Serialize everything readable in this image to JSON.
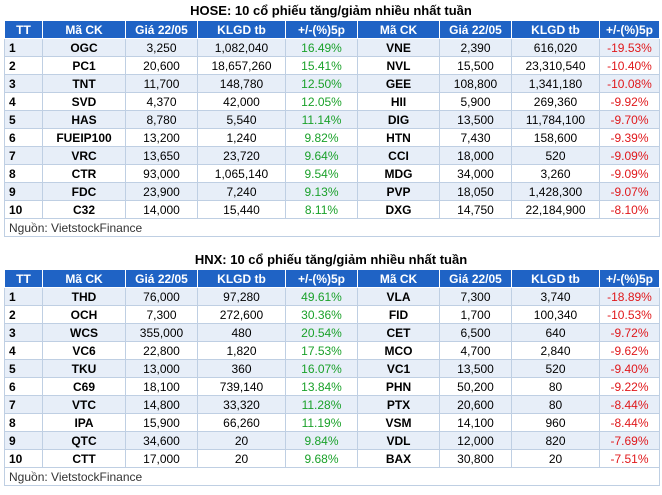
{
  "hose": {
    "title": "HOSE: 10 cổ phiếu tăng/giảm nhiều nhất tuần",
    "headers": [
      "TT",
      "Mã CK",
      "Giá 22/05",
      "KLGD tb",
      "+/-(%)5p",
      "Mã CK",
      "Giá 22/05",
      "KLGD tb",
      "+/-(%)5p"
    ],
    "rows": [
      [
        "1",
        "OGC",
        "3,250",
        "1,082,040",
        "16.49%",
        "VNE",
        "2,390",
        "616,020",
        "-19.53%"
      ],
      [
        "2",
        "PC1",
        "20,600",
        "18,657,260",
        "15.41%",
        "NVL",
        "15,500",
        "23,310,540",
        "-10.40%"
      ],
      [
        "3",
        "TNT",
        "11,700",
        "148,780",
        "12.50%",
        "GEE",
        "108,800",
        "1,341,180",
        "-10.08%"
      ],
      [
        "4",
        "SVD",
        "4,370",
        "42,000",
        "12.05%",
        "HII",
        "5,900",
        "269,360",
        "-9.92%"
      ],
      [
        "5",
        "HAS",
        "8,780",
        "5,540",
        "11.14%",
        "DIG",
        "13,500",
        "11,784,100",
        "-9.70%"
      ],
      [
        "6",
        "FUEIP100",
        "13,200",
        "1,240",
        "9.82%",
        "HTN",
        "7,430",
        "158,600",
        "-9.39%"
      ],
      [
        "7",
        "VRC",
        "13,650",
        "23,720",
        "9.64%",
        "CCI",
        "18,000",
        "520",
        "-9.09%"
      ],
      [
        "8",
        "CTR",
        "93,000",
        "1,065,140",
        "9.54%",
        "MDG",
        "34,000",
        "3,260",
        "-9.09%"
      ],
      [
        "9",
        "FDC",
        "23,900",
        "7,240",
        "9.13%",
        "PVP",
        "18,050",
        "1,428,300",
        "-9.07%"
      ],
      [
        "10",
        "C32",
        "14,000",
        "15,440",
        "8.11%",
        "DXG",
        "14,750",
        "22,184,900",
        "-8.10%"
      ]
    ],
    "source": "Nguồn: VietstockFinance"
  },
  "hnx": {
    "title": "HNX: 10 cổ phiếu tăng/giảm nhiều nhất tuần",
    "headers": [
      "TT",
      "Mã CK",
      "Giá 22/05",
      "KLGD tb",
      "+/-(%)5p",
      "Mã CK",
      "Giá 22/05",
      "KLGD tb",
      "+/-(%)5p"
    ],
    "rows": [
      [
        "1",
        "THD",
        "76,000",
        "97,280",
        "49.61%",
        "VLA",
        "7,300",
        "3,740",
        "-18.89%"
      ],
      [
        "2",
        "OCH",
        "7,300",
        "272,600",
        "30.36%",
        "FID",
        "1,700",
        "100,340",
        "-10.53%"
      ],
      [
        "3",
        "WCS",
        "355,000",
        "480",
        "20.54%",
        "CET",
        "6,500",
        "640",
        "-9.72%"
      ],
      [
        "4",
        "VC6",
        "22,800",
        "1,820",
        "17.53%",
        "MCO",
        "4,700",
        "2,840",
        "-9.62%"
      ],
      [
        "5",
        "TKU",
        "13,000",
        "360",
        "16.07%",
        "VC1",
        "13,500",
        "520",
        "-9.40%"
      ],
      [
        "6",
        "C69",
        "18,100",
        "739,140",
        "13.84%",
        "PHN",
        "50,200",
        "80",
        "-9.22%"
      ],
      [
        "7",
        "VTC",
        "14,800",
        "33,320",
        "11.28%",
        "PTX",
        "20,600",
        "80",
        "-8.44%"
      ],
      [
        "8",
        "IPA",
        "15,900",
        "66,260",
        "11.19%",
        "VSM",
        "14,100",
        "960",
        "-8.44%"
      ],
      [
        "9",
        "QTC",
        "34,600",
        "20",
        "9.84%",
        "VDL",
        "12,000",
        "820",
        "-7.69%"
      ],
      [
        "10",
        "CTT",
        "17,000",
        "20",
        "9.68%",
        "BAX",
        "30,800",
        "20",
        "-7.51%"
      ]
    ],
    "source": "Nguồn: VietstockFinance"
  }
}
